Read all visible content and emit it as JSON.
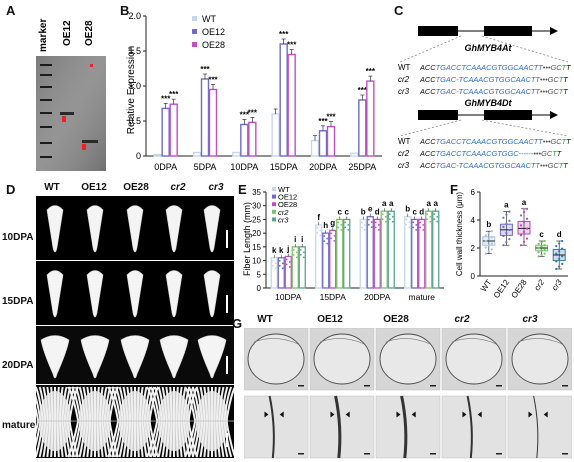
{
  "panels": {
    "A": {
      "label": "A",
      "lanes": [
        "marker",
        "OE12",
        "OE28"
      ]
    },
    "B": {
      "label": "B",
      "legend": [
        "WT",
        "OE12",
        "OE28"
      ],
      "colors": [
        "#c7d7ea",
        "#6f6bc6",
        "#c44fbd"
      ]
    },
    "C": {
      "label": "C",
      "gene1": "GhMYB4At",
      "gene2": "GhMYB4Dt",
      "rows1": [
        {
          "name": "WT",
          "seq": "ACCTGACCTCAAACGTGGCAACTT•••GCTT"
        },
        {
          "name": "cr2",
          "seq": "ACCTGAC-TCAAACGTGGCAACTT•••GCTT"
        },
        {
          "name": "cr3",
          "seq": "ACCTGAC-TCAAACGTGGCAACTT•••GCTT"
        }
      ],
      "rows2": [
        {
          "name": "WT",
          "seq": "ACCTGACCTCAAACGTGGCAACTT•••GCTT"
        },
        {
          "name": "cr2",
          "seq": "ACCTGACCTCAAACGTGGC------•••GCTT"
        },
        {
          "name": "cr3",
          "seq": "ACCTGAC-TCAAACGTGGCAACTT•••GCTT"
        }
      ]
    },
    "D": {
      "label": "D",
      "columns": [
        "WT",
        "OE12",
        "OE28",
        "cr2",
        "cr3"
      ],
      "rows": [
        "10DPA",
        "15DPA",
        "20DPA",
        "mature"
      ]
    },
    "E": {
      "label": "E",
      "legend": [
        "WT",
        "OE12",
        "OE28",
        "cr2",
        "cr3"
      ],
      "colors": [
        "#c7d7ea",
        "#6f6bc6",
        "#c44fbd",
        "#7cc26a",
        "#5aa58f"
      ]
    },
    "F": {
      "label": "F",
      "colors": [
        "#a9c2e0",
        "#6f6bc6",
        "#b44bb0",
        "#7cc26a",
        "#2f78a8"
      ]
    },
    "G": {
      "label": "G",
      "columns": [
        "WT",
        "OE12",
        "OE28",
        "cr2",
        "cr3"
      ]
    }
  },
  "chart_data": [
    {
      "id": "B",
      "type": "bar",
      "ylabel": "Relative Expression",
      "ylim": [
        0,
        2.0
      ],
      "yticks": [
        "0",
        "0.5",
        "1.0",
        "1.5",
        "2.0"
      ],
      "categories": [
        "0DPA",
        "5DPA",
        "10DPA",
        "15DPA",
        "20DPA",
        "25DPA"
      ],
      "series": [
        {
          "name": "WT",
          "values": [
            0.02,
            0.05,
            0.05,
            0.6,
            0.22,
            0.04
          ]
        },
        {
          "name": "OE12",
          "values": [
            0.68,
            1.1,
            0.45,
            1.6,
            0.36,
            0.8
          ]
        },
        {
          "name": "OE28",
          "values": [
            0.74,
            0.95,
            0.48,
            1.45,
            0.42,
            1.07
          ]
        }
      ],
      "significance": [
        [
          "",
          "***",
          "***"
        ],
        [
          "",
          "***",
          "***"
        ],
        [
          "",
          "***",
          "***"
        ],
        [
          "",
          "***",
          "***"
        ],
        [
          "",
          "***",
          "***"
        ],
        [
          "",
          "***",
          "***"
        ]
      ]
    },
    {
      "id": "E",
      "type": "bar",
      "ylabel": "Fiber Length (mm)",
      "ylim": [
        0,
        35
      ],
      "yticks": [
        "0",
        "5",
        "10",
        "15",
        "20",
        "25",
        "30",
        "35"
      ],
      "categories": [
        "10DPA",
        "15DPA",
        "20DPA",
        "mature"
      ],
      "series": [
        {
          "name": "WT",
          "values": [
            11,
            23,
            25,
            26
          ]
        },
        {
          "name": "OE12",
          "values": [
            11,
            20,
            26,
            25
          ]
        },
        {
          "name": "OE28",
          "values": [
            11.5,
            21,
            25,
            25
          ]
        },
        {
          "name": "cr2",
          "values": [
            15,
            25,
            28,
            28
          ]
        },
        {
          "name": "cr3",
          "values": [
            15,
            25,
            28,
            28
          ]
        }
      ],
      "letters": [
        [
          "k",
          "k",
          "j",
          "i",
          "i"
        ],
        [
          "f",
          "h",
          "g",
          "c",
          "c"
        ],
        [
          "b",
          "e",
          "d",
          "a",
          "a"
        ],
        [
          "b",
          "c",
          "d",
          "a",
          "a"
        ]
      ]
    },
    {
      "id": "F",
      "type": "box",
      "ylabel": "Cell wall thickness (μm)",
      "ylim": [
        0,
        6
      ],
      "yticks": [
        "0",
        "2",
        "4",
        "6"
      ],
      "categories": [
        "WT",
        "OE12",
        "OE28",
        "cr2",
        "cr3"
      ],
      "stats": [
        {
          "min": 1.6,
          "q1": 2.2,
          "median": 2.5,
          "q3": 2.8,
          "max": 3.2
        },
        {
          "min": 2.2,
          "q1": 2.9,
          "median": 3.3,
          "q3": 3.7,
          "max": 4.6
        },
        {
          "min": 2.2,
          "q1": 3.0,
          "median": 3.4,
          "q3": 3.9,
          "max": 4.8
        },
        {
          "min": 1.4,
          "q1": 1.8,
          "median": 2.0,
          "q3": 2.2,
          "max": 2.5
        },
        {
          "min": 0.5,
          "q1": 1.1,
          "median": 1.5,
          "q3": 1.9,
          "max": 2.5
        }
      ],
      "letters": [
        "b",
        "a",
        "a",
        "c",
        "d"
      ]
    }
  ]
}
